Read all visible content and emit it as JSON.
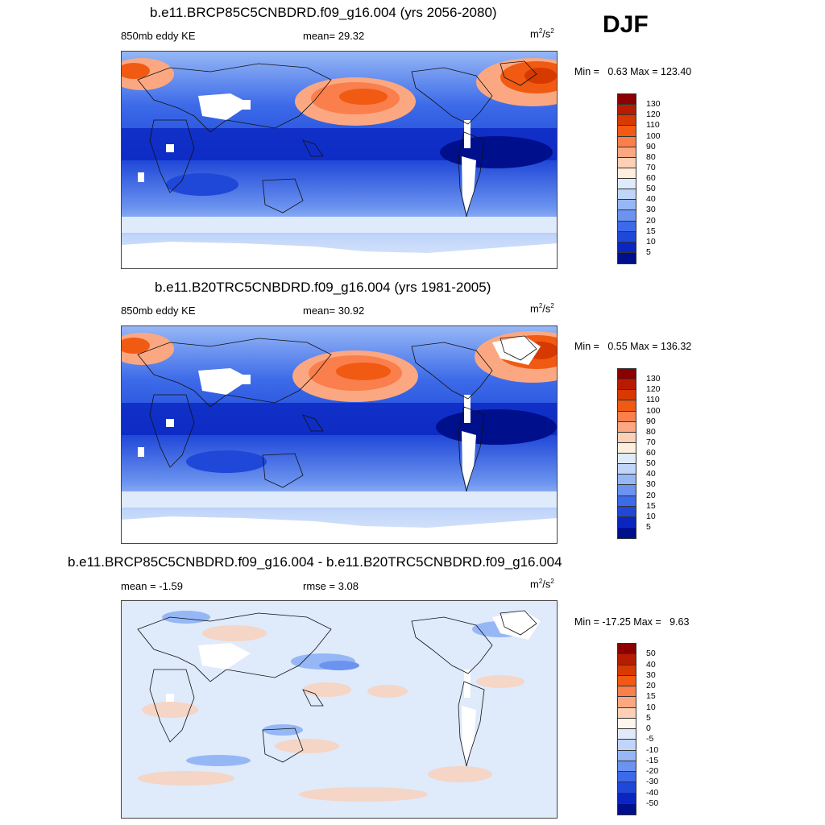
{
  "season": "DJF",
  "panels": [
    {
      "title": "b.e11.BRCP85C5CNBDRD.f09_g16.004 (yrs 2056-2080)",
      "left_label": "850mb eddy KE",
      "center_label": "mean=  29.32",
      "units_base": "m",
      "units_sup1": "2",
      "units_mid": "/s",
      "units_sup2": "2",
      "minmax": "Min =   0.63 Max = 123.40",
      "colorbar": {
        "ticks": [
          "130",
          "120",
          "110",
          "100",
          "90",
          "80",
          "70",
          "60",
          "50",
          "40",
          "30",
          "20",
          "15",
          "10",
          "5"
        ],
        "colors": [
          "#8b0000",
          "#b71c00",
          "#d73a00",
          "#f05a12",
          "#fa7f4c",
          "#fba882",
          "#fdcfb4",
          "#fdeedd",
          "#dfeafb",
          "#c0d5fa",
          "#96b7f6",
          "#6b93ef",
          "#3c6ae8",
          "#1f47d8",
          "#0a25c0",
          "#000f8c"
        ]
      }
    },
    {
      "title": "b.e11.B20TRC5CNBDRD.f09_g16.004 (yrs 1981-2005)",
      "left_label": "850mb eddy KE",
      "center_label": "mean=  30.92",
      "units_base": "m",
      "units_sup1": "2",
      "units_mid": "/s",
      "units_sup2": "2",
      "minmax": "Min =   0.55 Max = 136.32",
      "colorbar": {
        "ticks": [
          "130",
          "120",
          "110",
          "100",
          "90",
          "80",
          "70",
          "60",
          "50",
          "40",
          "30",
          "20",
          "15",
          "10",
          "5"
        ],
        "colors": [
          "#8b0000",
          "#b71c00",
          "#d73a00",
          "#f05a12",
          "#fa7f4c",
          "#fba882",
          "#fdcfb4",
          "#fdeedd",
          "#dfeafb",
          "#c0d5fa",
          "#96b7f6",
          "#6b93ef",
          "#3c6ae8",
          "#1f47d8",
          "#0a25c0",
          "#000f8c"
        ]
      }
    },
    {
      "title": "b.e11.BRCP85C5CNBDRD.f09_g16.004 - b.e11.B20TRC5CNBDRD.f09_g16.004",
      "left_label": "mean =  -1.59",
      "center_label": "rmse =   3.08",
      "units_base": "m",
      "units_sup1": "2",
      "units_mid": "/s",
      "units_sup2": "2",
      "minmax": "Min = -17.25 Max =   9.63",
      "colorbar": {
        "ticks": [
          "50",
          "40",
          "30",
          "20",
          "15",
          "10",
          "5",
          "0",
          "-5",
          "-10",
          "-15",
          "-20",
          "-30",
          "-40",
          "-50"
        ],
        "colors": [
          "#8b0000",
          "#b71c00",
          "#d73a00",
          "#f05a12",
          "#fa7f4c",
          "#fba882",
          "#fdcfb4",
          "#fdf6ee",
          "#dfeafb",
          "#c0d5fa",
          "#96b7f6",
          "#6b93ef",
          "#3c6ae8",
          "#1f47d8",
          "#0a25c0",
          "#000f8c"
        ]
      }
    }
  ]
}
